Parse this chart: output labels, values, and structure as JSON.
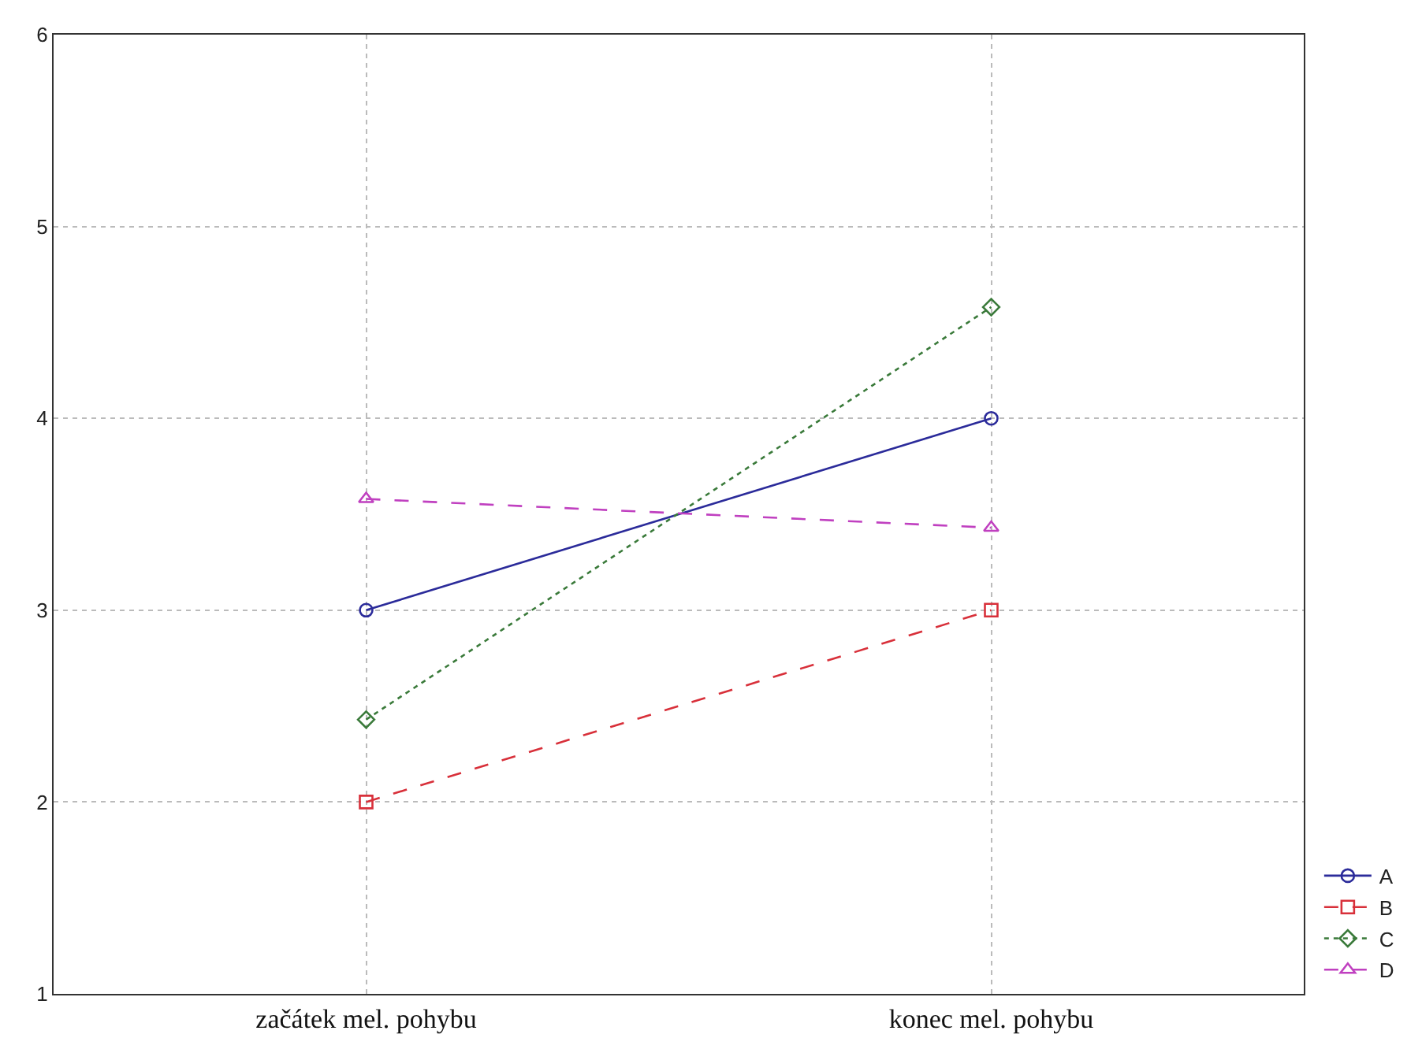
{
  "chart_data": {
    "type": "line",
    "categories": [
      "začátek mel. pohybu",
      "konec mel. pohybu"
    ],
    "ylim": [
      1,
      6
    ],
    "yticks": [
      1,
      2,
      3,
      4,
      5,
      6
    ],
    "grid": true,
    "legend": "bottom right",
    "series": [
      {
        "name": "A",
        "color": "#2b2b9a",
        "marker": "circle",
        "line_style": "solid",
        "values": [
          3,
          4
        ]
      },
      {
        "name": "B",
        "color": "#d8303a",
        "marker": "square",
        "line_style": "dashed",
        "values": [
          2,
          3
        ]
      },
      {
        "name": "C",
        "color": "#3a7a3a",
        "marker": "diamond",
        "line_style": "dotted",
        "values": [
          2.43,
          4.58
        ]
      },
      {
        "name": "D",
        "color": "#c040c0",
        "marker": "triangle",
        "line_style": "dashed",
        "values": [
          3.58,
          3.43
        ]
      }
    ]
  }
}
